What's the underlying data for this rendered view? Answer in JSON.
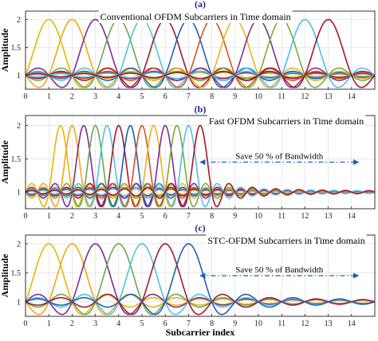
{
  "chart_data": [
    {
      "panel_label": "(a)",
      "type": "line",
      "title": "Conventional OFDM Subcarriers in Time domain",
      "ylabel": "Amplitude",
      "xlabel": "",
      "xlim": [
        0,
        15
      ],
      "ylim": [
        0.75,
        2.15
      ],
      "xticks": [
        "0",
        "1",
        "2",
        "3",
        "4",
        "5",
        "6",
        "7",
        "8",
        "9",
        "10",
        "11",
        "12",
        "13",
        "14"
      ],
      "yticks": [
        "1",
        "1.5",
        "2"
      ],
      "grid": true,
      "peak_spacing": 1,
      "peak_value": 2,
      "baseline": 1,
      "series": [
        {
          "color": "#e6b800",
          "peak": 1
        },
        {
          "color": "#f2a51a",
          "peak": 2
        },
        {
          "color": "#7b2d8e",
          "peak": 3
        },
        {
          "color": "#6aa84f",
          "peak": 4
        },
        {
          "color": "#4ec3e0",
          "peak": 5
        },
        {
          "color": "#9e1b32",
          "peak": 6
        },
        {
          "color": "#1f5fb4",
          "peak": 7
        },
        {
          "color": "#d95319",
          "peak": 8
        },
        {
          "color": "#edb120",
          "peak": 9
        },
        {
          "color": "#7e2f8e",
          "peak": 10
        },
        {
          "color": "#77ac30",
          "peak": 11
        },
        {
          "color": "#4dbeee",
          "peak": 12
        },
        {
          "color": "#a2142f",
          "peak": 13
        }
      ],
      "annotation": null
    },
    {
      "panel_label": "(b)",
      "type": "line",
      "title": "Fast OFDM Subcarriers in Time domain",
      "ylabel": "Amplitude",
      "xlabel": "",
      "xlim": [
        0,
        15
      ],
      "ylim": [
        0.75,
        2.15
      ],
      "xticks": [
        "0",
        "1",
        "2",
        "3",
        "4",
        "5",
        "6",
        "7",
        "8",
        "9",
        "10",
        "11",
        "12",
        "13",
        "14"
      ],
      "yticks": [
        "1",
        "1.5",
        "2"
      ],
      "grid": true,
      "peak_spacing": 0.5,
      "peak_value": 2,
      "baseline": 1,
      "series": [
        {
          "color": "#e6b800",
          "peak": 1.5
        },
        {
          "color": "#f2a51a",
          "peak": 2
        },
        {
          "color": "#7b2d8e",
          "peak": 2.5
        },
        {
          "color": "#6aa84f",
          "peak": 3
        },
        {
          "color": "#4ec3e0",
          "peak": 3.5
        },
        {
          "color": "#9e1b32",
          "peak": 4
        },
        {
          "color": "#1f5fb4",
          "peak": 4.5
        },
        {
          "color": "#d95319",
          "peak": 5
        },
        {
          "color": "#edb120",
          "peak": 5.5
        },
        {
          "color": "#7e2f8e",
          "peak": 6
        },
        {
          "color": "#77ac30",
          "peak": 6.5
        },
        {
          "color": "#4dbeee",
          "peak": 7
        },
        {
          "color": "#a2142f",
          "peak": 7.5
        }
      ],
      "annotation": {
        "text": "Save 50 % of Bandwidth",
        "x_from": 7.5,
        "x_to": 14.3,
        "y": 1.45
      }
    },
    {
      "panel_label": "(c)",
      "type": "line",
      "title": "STC-OFDM Subcarriers in Time domain",
      "ylabel": "Amplitude",
      "xlabel": "Subcarrier index",
      "xlim": [
        0,
        15
      ],
      "ylim": [
        0.75,
        2.15
      ],
      "xticks": [
        "0",
        "1",
        "2",
        "3",
        "4",
        "5",
        "6",
        "7",
        "8",
        "9",
        "10",
        "11",
        "12",
        "13",
        "14"
      ],
      "yticks": [
        "1",
        "1.5",
        "2"
      ],
      "grid": true,
      "peak_spacing": 1,
      "peak_value": 2,
      "baseline": 1,
      "series": [
        {
          "color": "#e6b800",
          "peak": 1
        },
        {
          "color": "#f2a51a",
          "peak": 2
        },
        {
          "color": "#7b2d8e",
          "peak": 3
        },
        {
          "color": "#6aa84f",
          "peak": 4
        },
        {
          "color": "#4ec3e0",
          "peak": 5
        },
        {
          "color": "#9e1b32",
          "peak": 6
        },
        {
          "color": "#1f5fb4",
          "peak": 7
        }
      ],
      "annotation": {
        "text": "Save 50 % of Bandwidth",
        "x_from": 7.5,
        "x_to": 14.3,
        "y": 1.45
      }
    }
  ]
}
